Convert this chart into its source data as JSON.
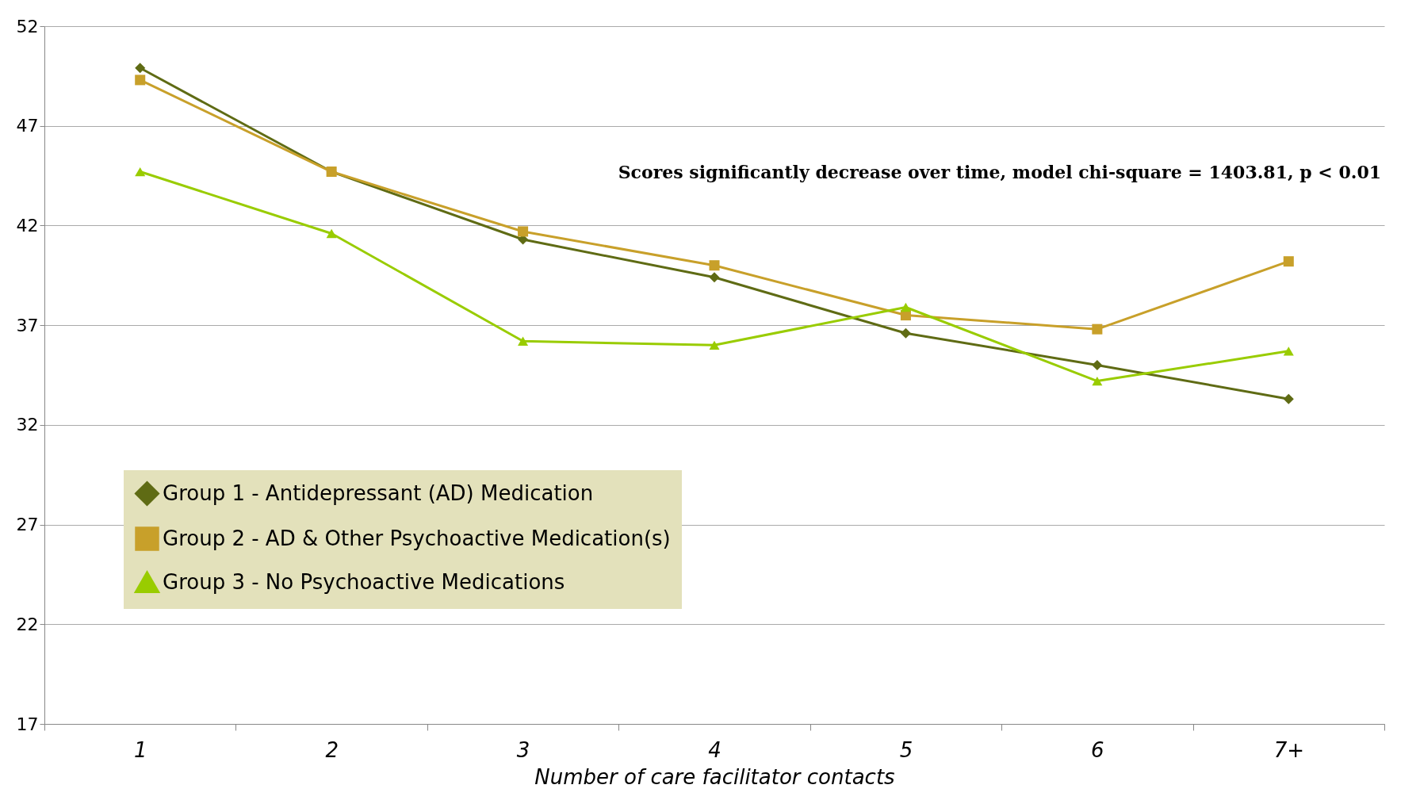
{
  "chart_data": {
    "type": "line",
    "xlabel": "Number of care facilitator contacts",
    "categories": [
      "1",
      "2",
      "3",
      "4",
      "5",
      "6",
      "7+"
    ],
    "ylim": [
      17,
      52
    ],
    "yticks": [
      17,
      22,
      27,
      32,
      37,
      42,
      47,
      52
    ],
    "grid": "y",
    "legend": "bottom left",
    "annotations": [
      "Scores significantly decrease over time, model chi-square = 1403.81, p < 0.01"
    ],
    "series": [
      {
        "name": "Group 1 - Antidepressant (AD) Medication",
        "color": "#5f6b14",
        "marker": "diamond",
        "values": [
          49.9,
          44.7,
          41.3,
          39.4,
          36.6,
          35.0,
          33.3
        ]
      },
      {
        "name": "Group 2 - AD & Other Psychoactive Medication(s)",
        "color": "#c8a02a",
        "marker": "square",
        "values": [
          49.3,
          44.7,
          41.7,
          40.0,
          37.5,
          36.8,
          40.2
        ]
      },
      {
        "name": "Group 3 - No Psychoactive Medications",
        "color": "#99cc00",
        "marker": "triangle",
        "values": [
          44.7,
          41.6,
          36.2,
          36.0,
          37.9,
          34.2,
          35.7
        ]
      }
    ]
  }
}
